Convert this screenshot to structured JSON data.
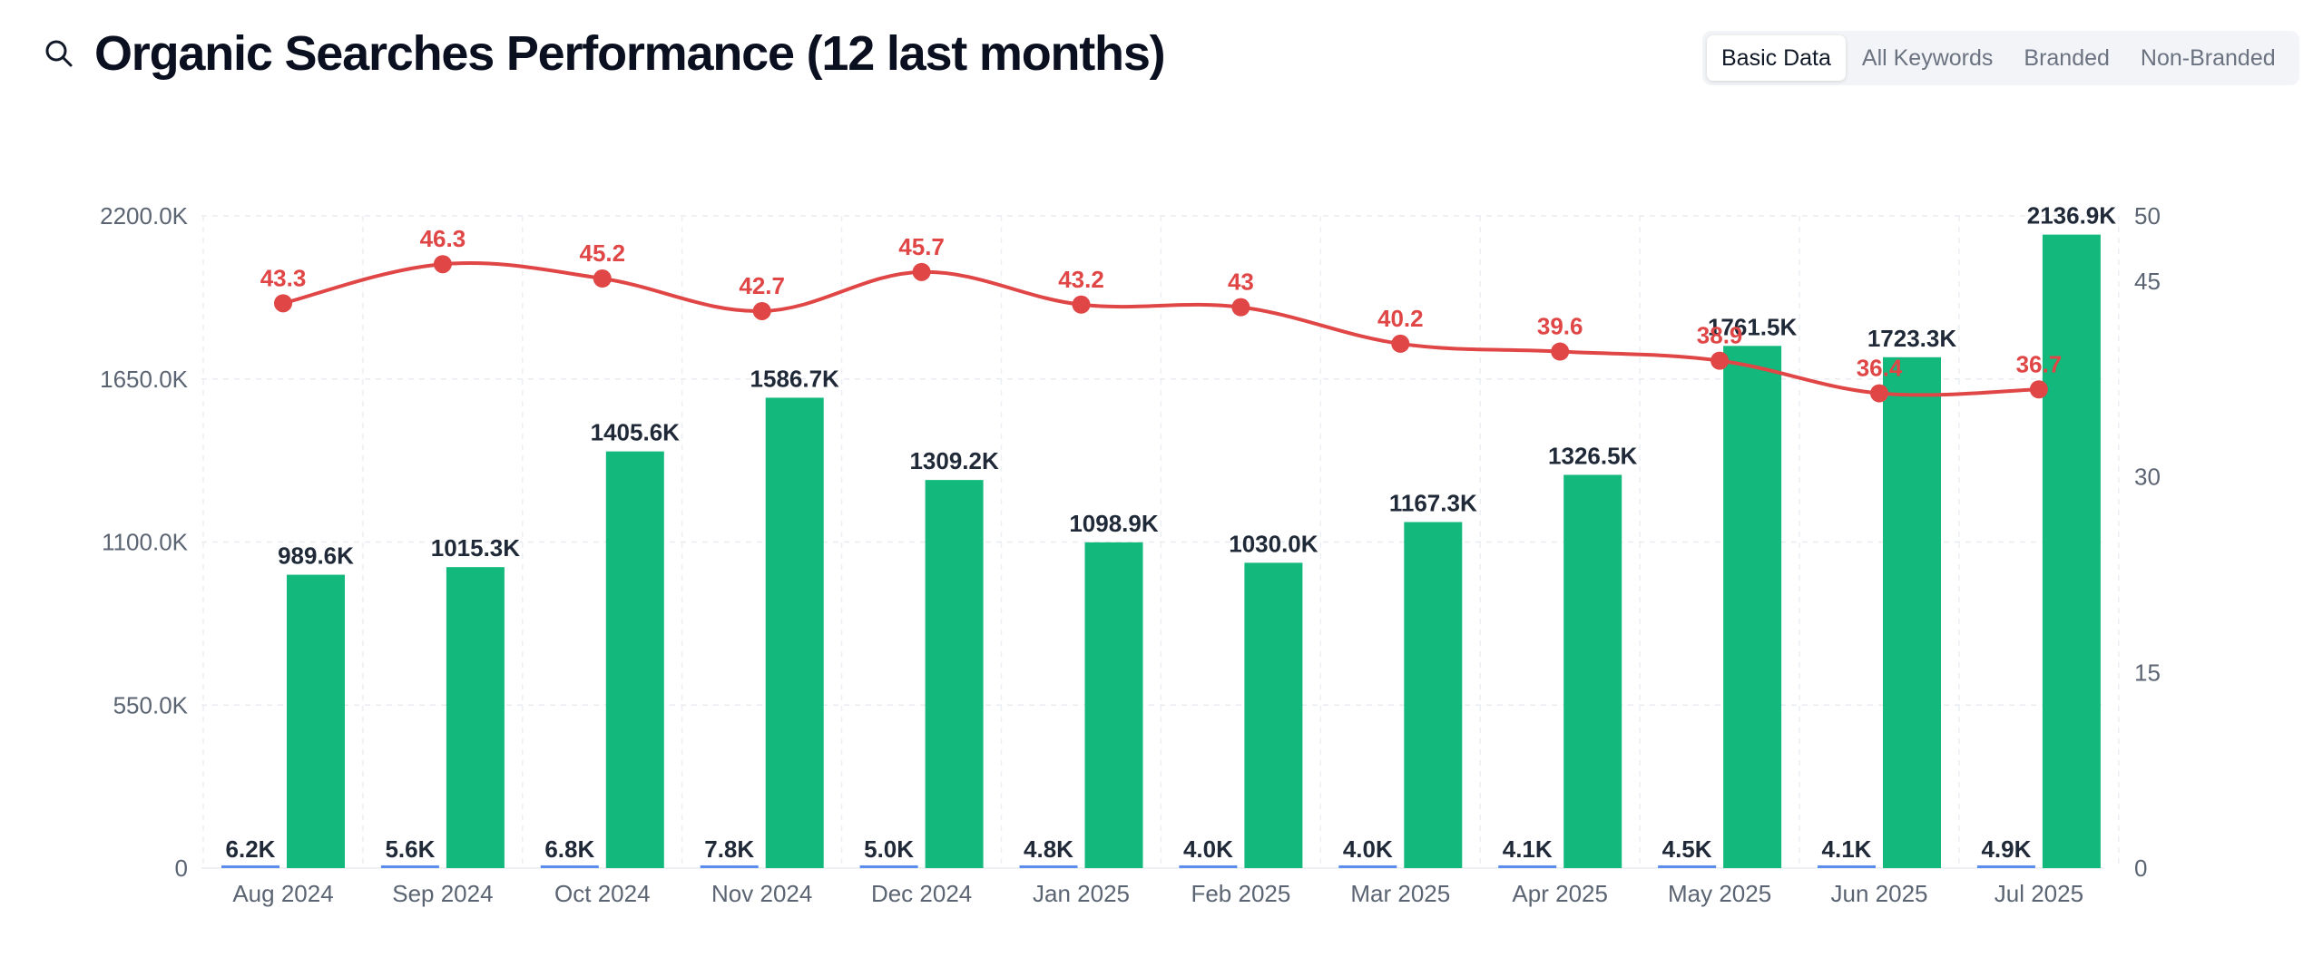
{
  "header": {
    "title": "Organic Searches Performance (12 last months)",
    "icon": "search-icon"
  },
  "tabs": [
    {
      "label": "Basic Data",
      "active": true
    },
    {
      "label": "All Keywords",
      "active": false
    },
    {
      "label": "Branded",
      "active": false
    },
    {
      "label": "Non-Branded",
      "active": false
    }
  ],
  "colors": {
    "bar_primary": "#13b97c",
    "bar_secondary": "#5b8def",
    "line": "#e04646"
  },
  "chart_data": {
    "type": "bar",
    "categories": [
      "Aug 2024",
      "Sep 2024",
      "Oct 2024",
      "Nov 2024",
      "Dec 2024",
      "Jan 2025",
      "Feb 2025",
      "Mar 2025",
      "Apr 2025",
      "May 2025",
      "Jun 2025",
      "Jul 2025"
    ],
    "series": [
      {
        "kind": "bar",
        "axis": "left",
        "color": "#5b8def",
        "values": [
          6.2,
          5.6,
          6.8,
          7.8,
          5.0,
          4.8,
          4.0,
          4.0,
          4.1,
          4.5,
          4.1,
          4.9
        ],
        "labels": [
          "6.2K",
          "5.6K",
          "6.8K",
          "7.8K",
          "5.0K",
          "4.8K",
          "4.0K",
          "4.0K",
          "4.1K",
          "4.5K",
          "4.1K",
          "4.9K"
        ]
      },
      {
        "kind": "bar",
        "axis": "left",
        "color": "#13b97c",
        "values": [
          989.6,
          1015.3,
          1405.6,
          1586.7,
          1309.2,
          1098.9,
          1030.0,
          1167.3,
          1326.5,
          1761.5,
          1723.3,
          2136.9
        ],
        "labels": [
          "989.6K",
          "1015.3K",
          "1405.6K",
          "1586.7K",
          "1309.2K",
          "1098.9K",
          "1030.0K",
          "1167.3K",
          "1326.5K",
          "1761.5K",
          "1723.3K",
          "2136.9K"
        ]
      },
      {
        "kind": "line",
        "axis": "right",
        "color": "#e04646",
        "values": [
          43.3,
          46.3,
          45.2,
          42.7,
          45.7,
          43.2,
          43,
          40.2,
          39.6,
          38.9,
          36.4,
          36.7
        ],
        "labels": [
          "43.3",
          "46.3",
          "45.2",
          "42.7",
          "45.7",
          "43.2",
          "43",
          "40.2",
          "39.6",
          "38.9",
          "36.4",
          "36.7"
        ]
      }
    ],
    "y_left": {
      "ylim": [
        0,
        2200
      ],
      "ticks": [
        0,
        550,
        1100,
        1650,
        2200
      ],
      "tick_labels": [
        "0",
        "550.0K",
        "1100.0K",
        "1650.0K",
        "2200.0K"
      ]
    },
    "y_right": {
      "ylim": [
        0,
        50
      ],
      "ticks": [
        0,
        15,
        30,
        45,
        50
      ],
      "tick_labels": [
        "0",
        "15",
        "30",
        "45",
        "50"
      ]
    },
    "grid": true,
    "legend": "none"
  }
}
